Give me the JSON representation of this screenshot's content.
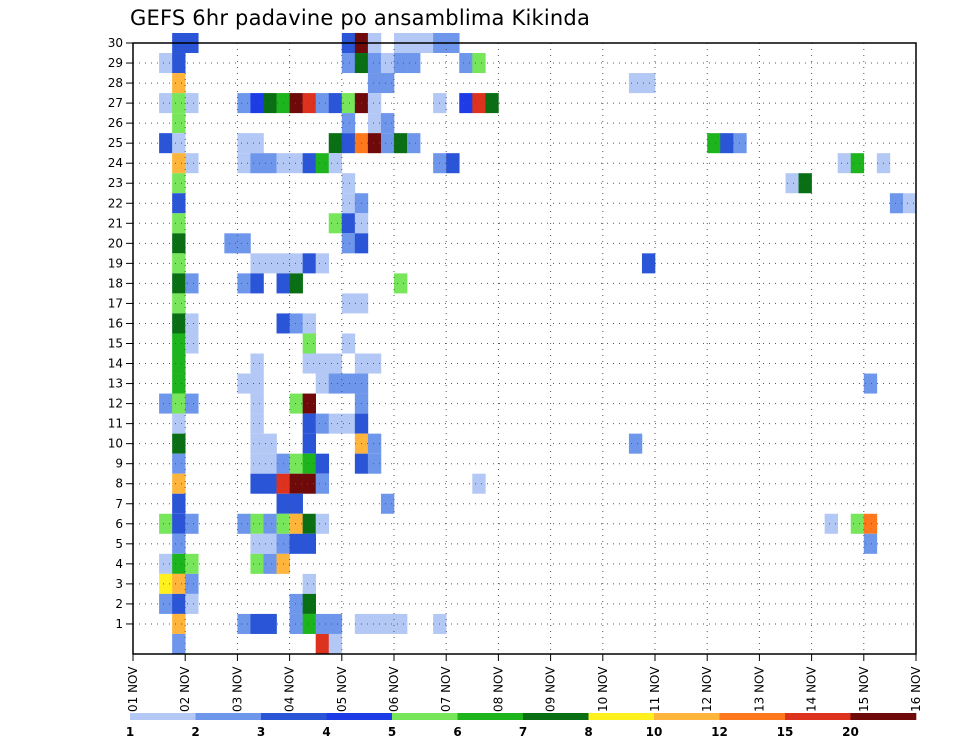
{
  "chart_data": {
    "type": "heatmap",
    "title": "GEFS 6hr padavine po ansamblima Kikinda",
    "xlabel": "",
    "ylabel": "",
    "x_ticks": [
      "01 NOV",
      "02 NOV",
      "03 NOV",
      "04 NOV",
      "05 NOV",
      "06 NOV",
      "07 NOV",
      "08 NOV",
      "09 NOV",
      "10 NOV",
      "11 NOV",
      "12 NOV",
      "13 NOV",
      "14 NOV",
      "15 NOV",
      "16 NOV"
    ],
    "xlim": [
      "01 NOV 00Z",
      "16 NOV 00Z"
    ],
    "x_step_hours": 6,
    "y_ticks": [
      "1",
      "2",
      "3",
      "4",
      "5",
      "6",
      "7",
      "8",
      "9",
      "10",
      "11",
      "12",
      "13",
      "14",
      "15",
      "16",
      "17",
      "18",
      "19",
      "20",
      "21",
      "22",
      "23",
      "24",
      "25",
      "26",
      "27",
      "28",
      "29",
      "30"
    ],
    "ylim": [
      0,
      30
    ],
    "grid": true,
    "colorbar": {
      "labels": [
        "1",
        "2",
        "3",
        "4",
        "5",
        "6",
        "7",
        "8",
        "10",
        "12",
        "15",
        "20"
      ],
      "colors": [
        "#b4c8f5",
        "#6e96eb",
        "#2a55d6",
        "#1e3ce6",
        "#78e65a",
        "#1eb41e",
        "#0a6e14",
        "#fff01e",
        "#ffb43c",
        "#ff781e",
        "#dc321e",
        "#6e0a0a"
      ]
    },
    "cell_value_key": "[member, step_6h_from_01NOV00Z, color_index]",
    "cells": [
      [
        30,
        3,
        2
      ],
      [
        30,
        4,
        2
      ],
      [
        30,
        16,
        2
      ],
      [
        30,
        17,
        11
      ],
      [
        30,
        18,
        0
      ],
      [
        30,
        20,
        0
      ],
      [
        30,
        21,
        0
      ],
      [
        30,
        22,
        0
      ],
      [
        30,
        23,
        1
      ],
      [
        30,
        24,
        1
      ],
      [
        29,
        2,
        0
      ],
      [
        29,
        3,
        2
      ],
      [
        29,
        16,
        1
      ],
      [
        29,
        17,
        6
      ],
      [
        29,
        18,
        1
      ],
      [
        29,
        19,
        0
      ],
      [
        29,
        20,
        1
      ],
      [
        29,
        21,
        1
      ],
      [
        29,
        25,
        1
      ],
      [
        29,
        26,
        4
      ],
      [
        28,
        3,
        8
      ],
      [
        28,
        18,
        1
      ],
      [
        28,
        19,
        1
      ],
      [
        28,
        38,
        0
      ],
      [
        28,
        39,
        0
      ],
      [
        27,
        2,
        0
      ],
      [
        27,
        3,
        4
      ],
      [
        27,
        4,
        0
      ],
      [
        27,
        8,
        1
      ],
      [
        27,
        9,
        3
      ],
      [
        27,
        10,
        6
      ],
      [
        27,
        11,
        5
      ],
      [
        27,
        12,
        11
      ],
      [
        27,
        13,
        10
      ],
      [
        27,
        14,
        1
      ],
      [
        27,
        15,
        2
      ],
      [
        27,
        16,
        4
      ],
      [
        27,
        17,
        11
      ],
      [
        27,
        18,
        0
      ],
      [
        27,
        23,
        0
      ],
      [
        27,
        25,
        3
      ],
      [
        27,
        26,
        10
      ],
      [
        27,
        27,
        6
      ],
      [
        26,
        3,
        4
      ],
      [
        26,
        16,
        1
      ],
      [
        26,
        18,
        0
      ],
      [
        26,
        19,
        1
      ],
      [
        25,
        2,
        2
      ],
      [
        25,
        3,
        0
      ],
      [
        25,
        8,
        0
      ],
      [
        25,
        9,
        0
      ],
      [
        25,
        15,
        6
      ],
      [
        25,
        16,
        2
      ],
      [
        25,
        17,
        9
      ],
      [
        25,
        18,
        11
      ],
      [
        25,
        19,
        1
      ],
      [
        25,
        20,
        6
      ],
      [
        25,
        21,
        1
      ],
      [
        25,
        44,
        5
      ],
      [
        25,
        45,
        2
      ],
      [
        25,
        46,
        1
      ],
      [
        24,
        3,
        8
      ],
      [
        24,
        4,
        0
      ],
      [
        24,
        8,
        0
      ],
      [
        24,
        9,
        1
      ],
      [
        24,
        10,
        1
      ],
      [
        24,
        11,
        0
      ],
      [
        24,
        12,
        0
      ],
      [
        24,
        13,
        2
      ],
      [
        24,
        14,
        5
      ],
      [
        24,
        15,
        0
      ],
      [
        24,
        23,
        1
      ],
      [
        24,
        24,
        2
      ],
      [
        24,
        54,
        0
      ],
      [
        24,
        55,
        5
      ],
      [
        24,
        57,
        0
      ],
      [
        23,
        3,
        4
      ],
      [
        23,
        16,
        0
      ],
      [
        23,
        50,
        0
      ],
      [
        23,
        51,
        6
      ],
      [
        22,
        3,
        2
      ],
      [
        22,
        16,
        0
      ],
      [
        22,
        17,
        1
      ],
      [
        22,
        58,
        1
      ],
      [
        22,
        59,
        0
      ],
      [
        21,
        3,
        4
      ],
      [
        21,
        15,
        4
      ],
      [
        21,
        16,
        2
      ],
      [
        21,
        17,
        0
      ],
      [
        20,
        3,
        6
      ],
      [
        20,
        7,
        1
      ],
      [
        20,
        8,
        1
      ],
      [
        20,
        16,
        1
      ],
      [
        20,
        17,
        2
      ],
      [
        19,
        3,
        4
      ],
      [
        19,
        9,
        0
      ],
      [
        19,
        10,
        0
      ],
      [
        19,
        11,
        0
      ],
      [
        19,
        12,
        0
      ],
      [
        19,
        13,
        2
      ],
      [
        19,
        14,
        0
      ],
      [
        19,
        39,
        2
      ],
      [
        18,
        3,
        6
      ],
      [
        18,
        4,
        1
      ],
      [
        18,
        8,
        1
      ],
      [
        18,
        9,
        2
      ],
      [
        18,
        11,
        2
      ],
      [
        18,
        12,
        6
      ],
      [
        18,
        20,
        4
      ],
      [
        17,
        3,
        4
      ],
      [
        17,
        16,
        0
      ],
      [
        17,
        17,
        0
      ],
      [
        16,
        3,
        6
      ],
      [
        16,
        4,
        0
      ],
      [
        16,
        11,
        2
      ],
      [
        16,
        12,
        1
      ],
      [
        16,
        13,
        0
      ],
      [
        15,
        3,
        5
      ],
      [
        15,
        4,
        0
      ],
      [
        15,
        13,
        4
      ],
      [
        15,
        16,
        0
      ],
      [
        14,
        3,
        5
      ],
      [
        14,
        9,
        0
      ],
      [
        14,
        13,
        0
      ],
      [
        14,
        14,
        0
      ],
      [
        14,
        15,
        0
      ],
      [
        14,
        17,
        0
      ],
      [
        14,
        18,
        0
      ],
      [
        13,
        3,
        5
      ],
      [
        13,
        8,
        0
      ],
      [
        13,
        9,
        0
      ],
      [
        13,
        14,
        0
      ],
      [
        13,
        15,
        1
      ],
      [
        13,
        16,
        1
      ],
      [
        13,
        17,
        1
      ],
      [
        13,
        56,
        1
      ],
      [
        12,
        2,
        1
      ],
      [
        12,
        3,
        4
      ],
      [
        12,
        4,
        1
      ],
      [
        12,
        9,
        0
      ],
      [
        12,
        12,
        4
      ],
      [
        12,
        13,
        11
      ],
      [
        12,
        17,
        1
      ],
      [
        11,
        3,
        0
      ],
      [
        11,
        9,
        0
      ],
      [
        11,
        13,
        2
      ],
      [
        11,
        14,
        1
      ],
      [
        11,
        15,
        0
      ],
      [
        11,
        16,
        0
      ],
      [
        11,
        17,
        2
      ],
      [
        10,
        3,
        6
      ],
      [
        10,
        9,
        0
      ],
      [
        10,
        10,
        0
      ],
      [
        10,
        13,
        2
      ],
      [
        10,
        17,
        8
      ],
      [
        10,
        18,
        1
      ],
      [
        10,
        38,
        1
      ],
      [
        9,
        3,
        1
      ],
      [
        9,
        9,
        0
      ],
      [
        9,
        10,
        0
      ],
      [
        9,
        11,
        1
      ],
      [
        9,
        12,
        4
      ],
      [
        9,
        13,
        5
      ],
      [
        9,
        14,
        2
      ],
      [
        9,
        17,
        2
      ],
      [
        9,
        18,
        1
      ],
      [
        8,
        3,
        8
      ],
      [
        8,
        9,
        2
      ],
      [
        8,
        10,
        2
      ],
      [
        8,
        11,
        10
      ],
      [
        8,
        12,
        11
      ],
      [
        8,
        13,
        11
      ],
      [
        8,
        14,
        1
      ],
      [
        8,
        26,
        0
      ],
      [
        7,
        3,
        2
      ],
      [
        7,
        11,
        2
      ],
      [
        7,
        12,
        2
      ],
      [
        7,
        19,
        1
      ],
      [
        6,
        2,
        4
      ],
      [
        6,
        3,
        2
      ],
      [
        6,
        4,
        1
      ],
      [
        6,
        8,
        1
      ],
      [
        6,
        9,
        4
      ],
      [
        6,
        10,
        1
      ],
      [
        6,
        11,
        4
      ],
      [
        6,
        12,
        8
      ],
      [
        6,
        13,
        6
      ],
      [
        6,
        14,
        0
      ],
      [
        6,
        53,
        0
      ],
      [
        6,
        55,
        4
      ],
      [
        6,
        56,
        9
      ],
      [
        5,
        3,
        1
      ],
      [
        5,
        9,
        0
      ],
      [
        5,
        10,
        0
      ],
      [
        5,
        11,
        1
      ],
      [
        5,
        12,
        2
      ],
      [
        5,
        13,
        2
      ],
      [
        5,
        56,
        1
      ],
      [
        4,
        2,
        0
      ],
      [
        4,
        3,
        5
      ],
      [
        4,
        4,
        4
      ],
      [
        4,
        9,
        4
      ],
      [
        4,
        10,
        1
      ],
      [
        4,
        11,
        8
      ],
      [
        3,
        2,
        7
      ],
      [
        3,
        3,
        8
      ],
      [
        3,
        4,
        1
      ],
      [
        3,
        13,
        0
      ],
      [
        2,
        2,
        1
      ],
      [
        2,
        3,
        2
      ],
      [
        2,
        4,
        0
      ],
      [
        2,
        12,
        1
      ],
      [
        2,
        13,
        6
      ],
      [
        1,
        3,
        8
      ],
      [
        1,
        8,
        1
      ],
      [
        1,
        9,
        2
      ],
      [
        1,
        10,
        2
      ],
      [
        1,
        12,
        1
      ],
      [
        1,
        13,
        5
      ],
      [
        1,
        14,
        1
      ],
      [
        1,
        15,
        1
      ],
      [
        1,
        17,
        0
      ],
      [
        1,
        18,
        0
      ],
      [
        1,
        19,
        0
      ],
      [
        1,
        20,
        0
      ],
      [
        1,
        23,
        0
      ],
      [
        0,
        3,
        1
      ],
      [
        0,
        14,
        10
      ],
      [
        0,
        15,
        0
      ]
    ]
  }
}
